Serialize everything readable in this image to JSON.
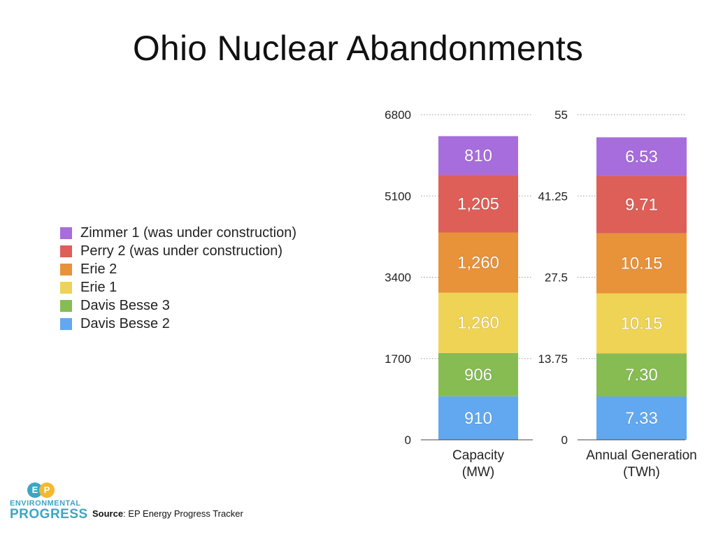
{
  "title": "Ohio Nuclear Abandonments",
  "legend": [
    {
      "label": "Zimmer 1 (was under construction)",
      "color": "#a76ddc"
    },
    {
      "label": "Perry 2 (was under construction)",
      "color": "#dd5f57"
    },
    {
      "label": "Erie 2",
      "color": "#e8923a"
    },
    {
      "label": "Erie 1",
      "color": "#efd354"
    },
    {
      "label": "Davis Besse 3",
      "color": "#86bc52"
    },
    {
      "label": "Davis Besse 2",
      "color": "#61a8f0"
    }
  ],
  "chart_data": [
    {
      "type": "bar",
      "stacked": true,
      "category": "Capacity\n(MW)",
      "ylim": [
        0,
        6800
      ],
      "yticks": [
        "0",
        "1700",
        "3400",
        "5100",
        "6800"
      ],
      "grid": true,
      "series": [
        {
          "name": "Davis Besse 2",
          "value": 910,
          "label": "910",
          "color": "#61a8f0"
        },
        {
          "name": "Davis Besse 3",
          "value": 906,
          "label": "906",
          "color": "#86bc52"
        },
        {
          "name": "Erie 1",
          "value": 1260,
          "label": "1,260",
          "color": "#efd354"
        },
        {
          "name": "Erie 2",
          "value": 1260,
          "label": "1,260",
          "color": "#e8923a"
        },
        {
          "name": "Perry 2 (was under construction)",
          "value": 1205,
          "label": "1,205",
          "color": "#dd5f57"
        },
        {
          "name": "Zimmer 1 (was under construction)",
          "value": 810,
          "label": "810",
          "color": "#a76ddc"
        }
      ]
    },
    {
      "type": "bar",
      "stacked": true,
      "category": "Annual Generation\n(TWh)",
      "ylim": [
        0,
        55
      ],
      "yticks": [
        "0",
        "13.75",
        "27.5",
        "41.25",
        "55"
      ],
      "grid": true,
      "series": [
        {
          "name": "Davis Besse 2",
          "value": 7.33,
          "label": "7.33",
          "color": "#61a8f0"
        },
        {
          "name": "Davis Besse 3",
          "value": 7.3,
          "label": "7.30",
          "color": "#86bc52"
        },
        {
          "name": "Erie 1",
          "value": 10.15,
          "label": "10.15",
          "color": "#efd354"
        },
        {
          "name": "Erie 2",
          "value": 10.15,
          "label": "10.15",
          "color": "#e8923a"
        },
        {
          "name": "Perry 2 (was under construction)",
          "value": 9.71,
          "label": "9.71",
          "color": "#dd5f57"
        },
        {
          "name": "Zimmer 1 (was under construction)",
          "value": 6.53,
          "label": "6.53",
          "color": "#a76ddc"
        }
      ]
    }
  ],
  "logo": {
    "mark_left": "E",
    "mark_right": "P",
    "line1": "ENVIRONMENTAL",
    "line2": "PROGRESS",
    "color_left": "#3aa6c4",
    "color_right": "#f5b82e"
  },
  "source": {
    "label": "Source",
    "text": ": EP Energy Progress Tracker"
  }
}
